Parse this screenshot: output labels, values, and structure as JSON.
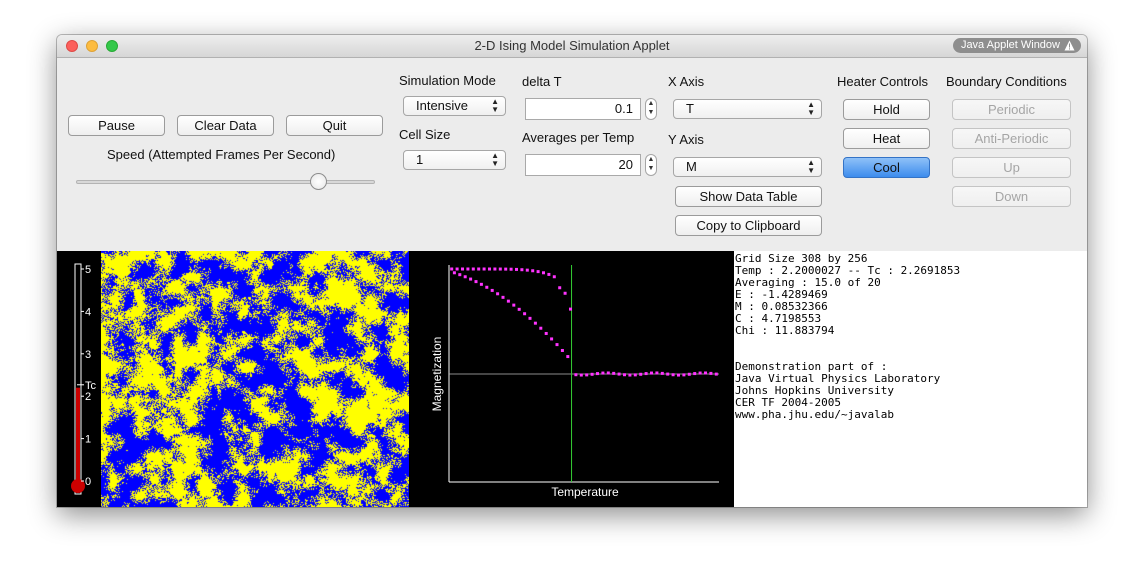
{
  "window": {
    "title": "2-D Ising Model Simulation Applet",
    "badge": "Java Applet Window"
  },
  "controls": {
    "pause_label": "Pause",
    "clear_label": "Clear Data",
    "quit_label": "Quit",
    "speed_label": "Speed (Attempted Frames Per Second)",
    "speed_level": 0.81,
    "sim_mode_label": "Simulation Mode",
    "sim_mode_value": "Intensive",
    "cell_size_label": "Cell Size",
    "cell_size_value": "1",
    "delta_t_label": "delta T",
    "delta_t_value": "0.1",
    "averages_label": "Averages per Temp",
    "averages_value": "20",
    "x_axis_label": "X Axis",
    "x_axis_value": "T",
    "y_axis_label": "Y Axis",
    "y_axis_value": "M",
    "show_table_label": "Show Data Table",
    "copy_label": "Copy to Clipboard"
  },
  "heater": {
    "title": "Heater Controls",
    "hold": "Hold",
    "heat": "Heat",
    "cool": "Cool",
    "active": "Cool"
  },
  "boundary": {
    "title": "Boundary Conditions",
    "periodic": "Periodic",
    "anti_periodic": "Anti-Periodic",
    "up": "Up",
    "down": "Down"
  },
  "thermometer": {
    "ticks": [
      "5",
      "4",
      "3",
      "2",
      "1",
      "0"
    ],
    "tc_label": "Tc",
    "tc_value": 2.2691853,
    "temp": 2.2000027,
    "max": 5
  },
  "lattice": {
    "spin_up_color": "#ffff00",
    "spin_down_color": "#0000ff"
  },
  "plot": {
    "xlabel": "Temperature",
    "ylabel": "Magnetization",
    "point_color": "#ff33ff",
    "tc_line_color": "#33cc33"
  },
  "info": {
    "lines": [
      "Grid Size 308 by 256",
      "Temp : 2.2000027 -- Tc : 2.2691853",
      "Averaging : 15.0 of 20",
      "E : -1.4289469",
      "M : 0.08532366",
      "C : 4.7198553",
      "Chi : 11.883794",
      "",
      "",
      "Demonstration part of :",
      "Java Virtual Physics Laboratory",
      "Johns Hopkins University",
      "CER TF 2004-2005",
      "www.pha.jhu.edu/~javalab"
    ]
  }
}
